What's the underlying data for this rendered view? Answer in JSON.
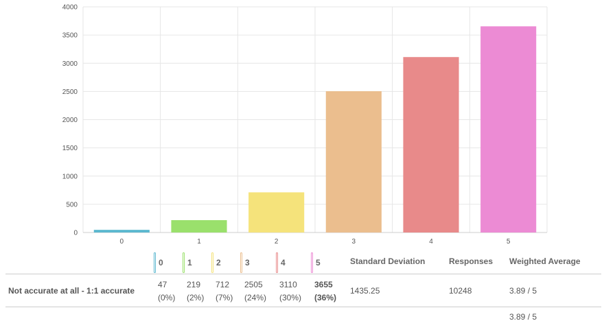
{
  "chart_data": {
    "type": "bar",
    "categories": [
      "0",
      "1",
      "2",
      "3",
      "4",
      "5"
    ],
    "values": [
      47,
      219,
      712,
      2505,
      3110,
      3655
    ],
    "colors": [
      "#5bb8cf",
      "#9ae06c",
      "#f5e37b",
      "#ebbe8e",
      "#e88a8a",
      "#ec8bd4"
    ],
    "ylim": [
      0,
      4000
    ],
    "yticks": [
      0,
      500,
      1000,
      1500,
      2000,
      2500,
      3000,
      3500,
      4000
    ],
    "title": "",
    "xlabel": "",
    "ylabel": ""
  },
  "table": {
    "choice_headers": [
      "0",
      "1",
      "2",
      "3",
      "4",
      "5"
    ],
    "stddev_header": "Standard Deviation",
    "responses_header": "Responses",
    "weighted_header": "Weighted Average",
    "row": {
      "label": "Not accurate at all - 1:1 accurate",
      "counts": [
        "47",
        "219",
        "712",
        "2505",
        "3110",
        "3655"
      ],
      "percents": [
        "(0%)",
        "(2%)",
        "(7%)",
        "(24%)",
        "(30%)",
        "(36%)"
      ],
      "stddev": "1435.25",
      "responses": "10248",
      "weighted": "3.89 / 5"
    },
    "footer_weighted": "3.89 / 5"
  }
}
